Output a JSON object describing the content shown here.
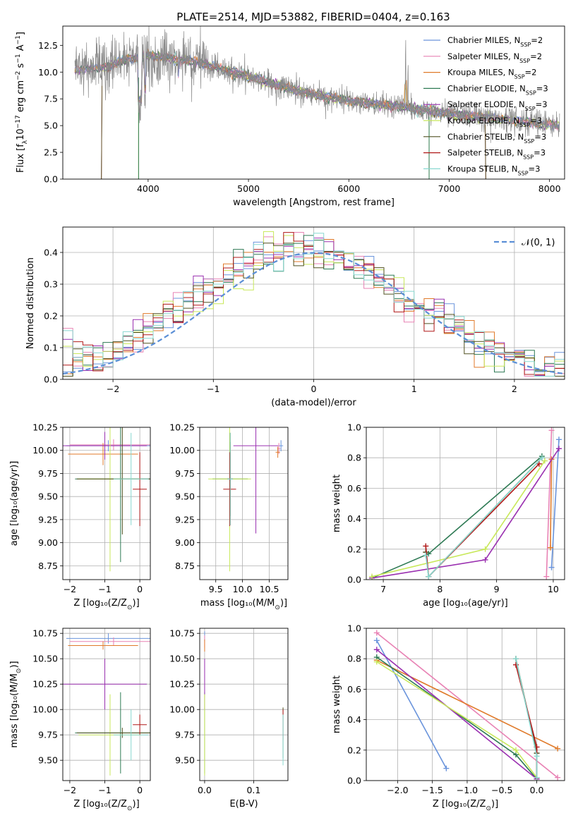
{
  "figure_title": "PLATE=2514, MJD=53882, FIBERID=0404, z=0.163",
  "colors": {
    "Chabrier MILES": "#6a94dc",
    "Salpeter MILES": "#e882b4",
    "Kroupa MILES": "#e07a2a",
    "Chabrier ELODIE": "#2e7a54",
    "Salpeter ELODIE": "#9a30b0",
    "Kroupa ELODIE": "#c8e85a",
    "Chabrier STELIB": "#505020",
    "Salpeter STELIB": "#b01818",
    "Kroupa STELIB": "#88d8d0",
    "data": "#888888",
    "normal": "#5b8fd6"
  },
  "chart_data": [
    {
      "id": "spectrum",
      "type": "line",
      "xlabel": "wavelength [Angstrom, rest frame]",
      "ylabel": "Flux [f_λ 10^-17 erg cm^-2 s^-1 A^-1]",
      "xlim": [
        3150,
        8150
      ],
      "ylim": [
        0,
        14.3
      ],
      "xticks": [
        4000,
        5000,
        6000,
        7000,
        8000
      ],
      "yticks": [
        "0.0",
        "2.5",
        "5.0",
        "7.5",
        "10.0",
        "12.5"
      ],
      "grid": false,
      "legend_position": "upper-right",
      "legend": [
        "Chabrier MILES, N_SSP=2",
        "Salpeter MILES, N_SSP=2",
        "Kroupa MILES, N_SSP=2",
        "Chabrier ELODIE, N_SSP=3",
        "Salpeter ELODIE, N_SSP=3",
        "Kroupa ELODIE, N_SSP=3",
        "Chabrier STELIB, N_SSP=3",
        "Salpeter STELIB, N_SSP=3",
        "Kroupa STELIB, N_SSP=3"
      ],
      "continuum_x": [
        3270,
        3600,
        3800,
        4000,
        4200,
        4500,
        5000,
        5500,
        6000,
        6500,
        7000,
        7500,
        8000,
        8100
      ],
      "continuum_y": [
        10.2,
        10.5,
        11.2,
        11.6,
        11.3,
        10.9,
        9.6,
        8.2,
        7.3,
        6.8,
        6.1,
        5.6,
        5.1,
        5.0
      ]
    },
    {
      "id": "residuals",
      "type": "line",
      "xlabel": "(data-model)/error",
      "ylabel": "Normed distribution",
      "xlim": [
        -2.5,
        2.5
      ],
      "ylim": [
        0,
        0.48
      ],
      "xticks": [
        -2,
        -1,
        0,
        1,
        2
      ],
      "yticks": [
        "0.0",
        "0.1",
        "0.2",
        "0.3",
        "0.4"
      ],
      "grid": true,
      "legend_position": "upper-right",
      "legend": [
        "N(0,1)"
      ],
      "bin_width": 0.1,
      "hist_envelope_x": [
        -2.5,
        -2.0,
        -1.5,
        -1.0,
        -0.5,
        0.0,
        0.5,
        1.0,
        1.5,
        2.0,
        2.5
      ],
      "hist_envelope_y": [
        0.045,
        0.08,
        0.19,
        0.29,
        0.39,
        0.41,
        0.36,
        0.23,
        0.14,
        0.065,
        0.03
      ]
    },
    {
      "id": "age_vs_Z",
      "type": "scatter",
      "xlabel": "Z [log10(Z/Z_sun)]",
      "ylabel": "age  [log10(age/yr)]",
      "xlim": [
        -2.2,
        0.3
      ],
      "ylim": [
        8.6,
        10.25
      ],
      "xticks": [
        "-2",
        "-1",
        "0"
      ],
      "yticks": [
        "8.75",
        "9.00",
        "9.25",
        "9.50",
        "9.75",
        "10.00",
        "10.25"
      ],
      "grid": true,
      "points": [
        {
          "model": "Chabrier MILES",
          "x": -0.9,
          "xerr": 1.2,
          "y": 10.05,
          "yerr": 0.06
        },
        {
          "model": "Salpeter MILES",
          "x": -0.75,
          "xerr": 1.25,
          "y": 10.06,
          "yerr": 0.06
        },
        {
          "model": "Kroupa MILES",
          "x": -1.05,
          "xerr": 1.0,
          "y": 9.96,
          "yerr": 0.12
        },
        {
          "model": "Chabrier ELODIE",
          "x": -0.55,
          "xerr": 1.3,
          "y": 9.69,
          "yerr": 0.9
        },
        {
          "model": "Salpeter ELODIE",
          "x": -1.0,
          "xerr": 1.2,
          "y": 10.05,
          "yerr": 0.15
        },
        {
          "model": "Kroupa ELODIE",
          "x": -0.85,
          "xerr": 0.9,
          "y": 9.69,
          "yerr": 1.0
        },
        {
          "model": "Chabrier STELIB",
          "x": -0.5,
          "xerr": 1.3,
          "y": 9.69,
          "yerr": 0.6
        },
        {
          "model": "Salpeter STELIB",
          "x": 0.0,
          "xerr": 0.2,
          "y": 9.58,
          "yerr": 0.4
        },
        {
          "model": "Kroupa STELIB",
          "x": -0.25,
          "xerr": 0.5,
          "y": 9.69,
          "yerr": 0.5
        }
      ]
    },
    {
      "id": "age_vs_mass",
      "type": "scatter",
      "xlabel": "mass [log10(M/M_sun)]",
      "ylabel": "",
      "xlim": [
        9.2,
        10.85
      ],
      "ylim": [
        8.6,
        10.25
      ],
      "xticks": [
        "9.5",
        "10.0",
        "10.5"
      ],
      "yticks": [
        "8.75",
        "9.00",
        "9.25",
        "9.50",
        "9.75",
        "10.00",
        "10.25"
      ],
      "grid": true,
      "points": [
        {
          "model": "Chabrier MILES",
          "x": 10.72,
          "xerr": 0.04,
          "y": 10.05,
          "yerr": 0.06
        },
        {
          "model": "Salpeter MILES",
          "x": 10.68,
          "xerr": 0.03,
          "y": 10.02,
          "yerr": 0.06
        },
        {
          "model": "Kroupa MILES",
          "x": 10.66,
          "xerr": 0.04,
          "y": 9.98,
          "yerr": 0.06
        },
        {
          "model": "Chabrier ELODIE",
          "x": 9.77,
          "xerr": 0.33,
          "y": 9.69,
          "yerr": 0.4
        },
        {
          "model": "Salpeter ELODIE",
          "x": 10.25,
          "xerr": 0.42,
          "y": 10.05,
          "yerr": 0.95
        },
        {
          "model": "Kroupa ELODIE",
          "x": 9.76,
          "xerr": 0.4,
          "y": 9.69,
          "yerr": 1.0
        },
        {
          "model": "Chabrier STELIB",
          "x": 9.77,
          "xerr": 0.05,
          "y": 9.69,
          "yerr": 0.5
        },
        {
          "model": "Salpeter STELIB",
          "x": 9.76,
          "xerr": 0.12,
          "y": 9.58,
          "yerr": 0.4
        },
        {
          "model": "Kroupa STELIB",
          "x": 9.77,
          "xerr": 0.05,
          "y": 9.69,
          "yerr": 0.5
        }
      ]
    },
    {
      "id": "weight_vs_age",
      "type": "line",
      "xlabel": "age  [log10(age/yr)]",
      "ylabel": "mass weight",
      "xlim": [
        6.7,
        10.2
      ],
      "ylim": [
        0,
        1.0
      ],
      "xticks": [
        "7",
        "8",
        "9",
        "10"
      ],
      "yticks": [
        "0.0",
        "0.2",
        "0.4",
        "0.6",
        "0.8",
        "1.0"
      ],
      "grid": true,
      "series": [
        {
          "model": "Chabrier MILES",
          "x": [
            9.97,
            10.1
          ],
          "y": [
            0.08,
            0.92
          ]
        },
        {
          "model": "Salpeter MILES",
          "x": [
            9.88,
            9.97
          ],
          "y": [
            0.02,
            0.98
          ]
        },
        {
          "model": "Kroupa MILES",
          "x": [
            9.95,
            9.97
          ],
          "y": [
            0.21,
            0.79
          ]
        },
        {
          "model": "Chabrier ELODIE",
          "x": [
            6.8,
            7.8,
            9.8
          ],
          "y": [
            0.01,
            0.17,
            0.81
          ]
        },
        {
          "model": "Salpeter ELODIE",
          "x": [
            6.8,
            8.8,
            10.1
          ],
          "y": [
            0.01,
            0.13,
            0.86
          ]
        },
        {
          "model": "Kroupa ELODIE",
          "x": [
            6.8,
            8.8,
            9.85
          ],
          "y": [
            0.02,
            0.2,
            0.78
          ]
        },
        {
          "model": "Chabrier STELIB",
          "x": [
            7.75,
            7.8,
            9.8
          ],
          "y": [
            0.18,
            0.02,
            0.8
          ]
        },
        {
          "model": "Salpeter STELIB",
          "x": [
            7.75,
            7.8,
            9.75
          ],
          "y": [
            0.22,
            0.02,
            0.76
          ]
        },
        {
          "model": "Kroupa STELIB",
          "x": [
            7.75,
            7.8,
            9.8
          ],
          "y": [
            0.16,
            0.02,
            0.8
          ]
        }
      ]
    },
    {
      "id": "mass_vs_Z",
      "type": "scatter",
      "xlabel": "Z [log10(Z/Z_sun)]",
      "ylabel": "mass [log10(M/M_sun)]",
      "xlim": [
        -2.2,
        0.3
      ],
      "ylim": [
        9.3,
        10.8
      ],
      "xticks": [
        "-2",
        "-1",
        "0"
      ],
      "yticks": [
        "9.50",
        "9.75",
        "10.00",
        "10.25",
        "10.50",
        "10.75"
      ],
      "grid": true,
      "points": [
        {
          "model": "Chabrier MILES",
          "x": -0.9,
          "xerr": 1.2,
          "y": 10.7,
          "yerr": 0.05
        },
        {
          "model": "Salpeter MILES",
          "x": -0.75,
          "xerr": 1.25,
          "y": 10.67,
          "yerr": 0.04
        },
        {
          "model": "Kroupa MILES",
          "x": -1.05,
          "xerr": 1.0,
          "y": 10.63,
          "yerr": 0.04
        },
        {
          "model": "Chabrier ELODIE",
          "x": -0.55,
          "xerr": 1.3,
          "y": 9.77,
          "yerr": 0.4
        },
        {
          "model": "Salpeter ELODIE",
          "x": -1.0,
          "xerr": 1.2,
          "y": 10.25,
          "yerr": 0.25
        },
        {
          "model": "Kroupa ELODIE",
          "x": -0.85,
          "xerr": 0.9,
          "y": 9.75,
          "yerr": 0.4
        },
        {
          "model": "Chabrier STELIB",
          "x": -0.5,
          "xerr": 1.3,
          "y": 9.77,
          "yerr": 0.05
        },
        {
          "model": "Salpeter STELIB",
          "x": 0.0,
          "xerr": 0.2,
          "y": 9.85,
          "yerr": 0.1
        },
        {
          "model": "Kroupa STELIB",
          "x": -0.25,
          "xerr": 0.5,
          "y": 9.75,
          "yerr": 0.25
        }
      ]
    },
    {
      "id": "mass_vs_EBV",
      "type": "scatter",
      "xlabel": "E(B-V)",
      "ylabel": "",
      "xlim": [
        -0.01,
        0.17
      ],
      "ylim": [
        9.3,
        10.8
      ],
      "xticks": [
        "0.0",
        "0.1"
      ],
      "yticks": [
        "9.50",
        "9.75",
        "10.00",
        "10.25",
        "10.50",
        "10.75"
      ],
      "grid": true,
      "points": [
        {
          "model": "Chabrier MILES",
          "x": 0.0,
          "xerr": 0.0,
          "y": 10.72,
          "yerr": 0.05
        },
        {
          "model": "Salpeter MILES",
          "x": 0.0,
          "xerr": 0.0,
          "y": 10.67,
          "yerr": 0.06
        },
        {
          "model": "Kroupa MILES",
          "x": 0.0,
          "xerr": 0.0,
          "y": 10.63,
          "yerr": 0.06
        },
        {
          "model": "Chabrier ELODIE",
          "x": 0.0,
          "xerr": 0.0,
          "y": 9.77,
          "yerr": 0.4
        },
        {
          "model": "Salpeter ELODIE",
          "x": 0.0,
          "xerr": 0.0,
          "y": 10.25,
          "yerr": 0.25
        },
        {
          "model": "Kroupa ELODIE",
          "x": 0.0,
          "xerr": 0.0,
          "y": 9.75,
          "yerr": 0.4
        },
        {
          "model": "Chabrier STELIB",
          "x": 0.16,
          "xerr": 0.0,
          "y": 9.77,
          "yerr": 0.25
        },
        {
          "model": "Salpeter STELIB",
          "x": 0.16,
          "xerr": 0.0,
          "y": 9.85,
          "yerr": 0.15
        },
        {
          "model": "Kroupa STELIB",
          "x": 0.16,
          "xerr": 0.0,
          "y": 9.7,
          "yerr": 0.25
        }
      ]
    },
    {
      "id": "weight_vs_Z",
      "type": "line",
      "xlabel": "Z [log10(Z/Z_sun)]",
      "ylabel": "mass weight",
      "xlim": [
        -2.45,
        0.4
      ],
      "ylim": [
        0,
        1.0
      ],
      "xticks": [
        "-2.0",
        "-1.5",
        "-1.0",
        "-0.5",
        "0.0"
      ],
      "yticks": [
        "0.0",
        "0.2",
        "0.4",
        "0.6",
        "0.8",
        "1.0"
      ],
      "grid": true,
      "series": [
        {
          "model": "Chabrier MILES",
          "x": [
            -2.3,
            -1.3
          ],
          "y": [
            0.92,
            0.08
          ]
        },
        {
          "model": "Salpeter MILES",
          "x": [
            -2.3,
            0.3
          ],
          "y": [
            0.97,
            0.02
          ]
        },
        {
          "model": "Kroupa MILES",
          "x": [
            -2.3,
            0.3
          ],
          "y": [
            0.79,
            0.21
          ]
        },
        {
          "model": "Chabrier ELODIE",
          "x": [
            -2.3,
            -0.3,
            0.0
          ],
          "y": [
            0.81,
            0.17,
            0.01
          ]
        },
        {
          "model": "Salpeter ELODIE",
          "x": [
            -2.3,
            0.0
          ],
          "y": [
            0.86,
            0.01
          ]
        },
        {
          "model": "Kroupa ELODIE",
          "x": [
            -2.3,
            -0.3,
            0.0
          ],
          "y": [
            0.78,
            0.2,
            0.02
          ]
        },
        {
          "model": "Chabrier STELIB",
          "x": [
            -0.3,
            0.0,
            0.0
          ],
          "y": [
            0.8,
            0.18,
            0.02
          ]
        },
        {
          "model": "Salpeter STELIB",
          "x": [
            -0.3,
            0.0,
            0.0
          ],
          "y": [
            0.76,
            0.22,
            0.02
          ]
        },
        {
          "model": "Kroupa STELIB",
          "x": [
            -0.3,
            0.0,
            0.0
          ],
          "y": [
            0.8,
            0.16,
            0.02
          ]
        }
      ]
    }
  ]
}
